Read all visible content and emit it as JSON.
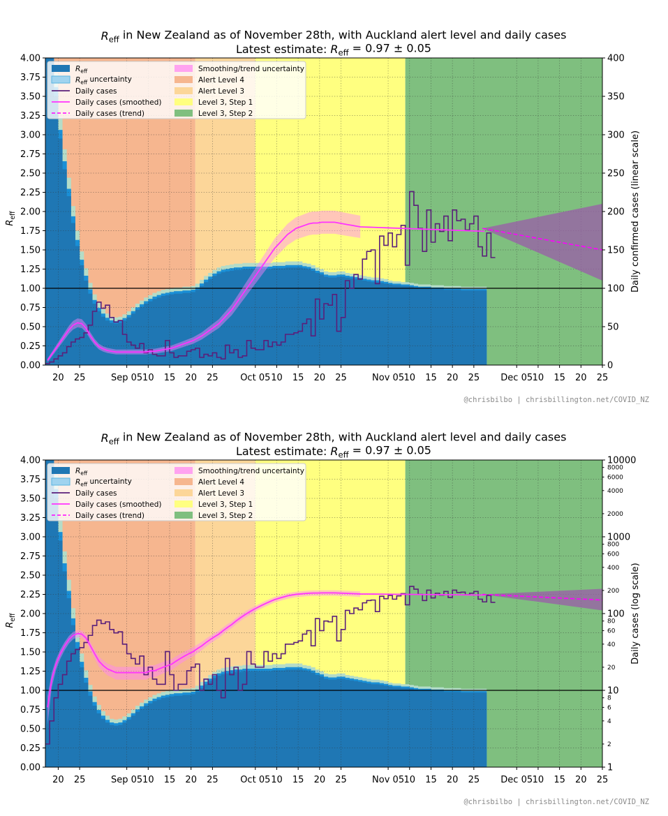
{
  "charts": [
    {
      "title_prefix": "R",
      "title_sub": "eff",
      "title_rest": " in New Zealand as of November 28th, with Auckland alert level and daily cases",
      "subtitle_prefix": "Latest estimate: ",
      "subtitle_formula": "R",
      "subtitle_sub": "eff",
      "subtitle_value": " = 0.97 ± 0.05",
      "ylabel_left": "R",
      "ylabel_left_sub": "eff",
      "ylabel_right": "Daily confirmed cases (linear scale)",
      "credit": "@chrisbilbo | chrisbillington.net/COVID_NZ"
    },
    {
      "title_prefix": "R",
      "title_sub": "eff",
      "title_rest": " in New Zealand as of November 28th, with Auckland alert level and daily cases",
      "subtitle_prefix": "Latest estimate: ",
      "subtitle_formula": "R",
      "subtitle_sub": "eff",
      "subtitle_value": " = 0.97 ± 0.05",
      "ylabel_left": "R",
      "ylabel_left_sub": "eff",
      "ylabel_right": "Daily cases (log scale)",
      "credit": "@chrisbilbo | chrisbillington.net/COVID_NZ"
    }
  ],
  "legend": [
    {
      "label": "R",
      "sub": "eff",
      "kind": "patch",
      "color": "#1f77b4"
    },
    {
      "label": "R",
      "sub": "eff",
      "suffix": " uncertainty",
      "kind": "patch-light",
      "color": "#9fd3ef"
    },
    {
      "label": "Daily cases",
      "kind": "line",
      "color": "#5a1f7a"
    },
    {
      "label": "Daily cases (smoothed)",
      "kind": "line",
      "color": "#ff33ff"
    },
    {
      "label": "Daily cases (trend)",
      "kind": "dash",
      "color": "#ff00ff"
    },
    {
      "label": "Smoothing/trend uncertainty",
      "kind": "patch",
      "color": "#ffa3f0"
    },
    {
      "label": "Alert Level 4",
      "kind": "patch",
      "color": "#f6b68f"
    },
    {
      "label": "Alert Level 3",
      "kind": "patch",
      "color": "#fcd699"
    },
    {
      "label": "Level 3, Step 1",
      "kind": "patch",
      "color": "#ffff80"
    },
    {
      "label": "Level 3, Step 2",
      "kind": "patch",
      "color": "#7fbf7f"
    }
  ],
  "chart_data": [
    {
      "type": "line",
      "title": "Reff in New Zealand as of November 28th, with Auckland alert level and daily cases",
      "subtitle": "Latest estimate: Reff = 0.97 ± 0.05",
      "x_tick_labels": [
        "20",
        "25",
        "Sep 05",
        "10",
        "15",
        "20",
        "25",
        "Oct 05",
        "10",
        "15",
        "20",
        "25",
        "Nov 05",
        "10",
        "15",
        "20",
        "25",
        "Dec 05",
        "10",
        "15",
        "20",
        "25"
      ],
      "ylim_left": [
        0,
        4
      ],
      "y_ticks_left": [
        "0.00",
        "0.25",
        "0.50",
        "0.75",
        "1.00",
        "1.25",
        "1.50",
        "1.75",
        "2.00",
        "2.25",
        "2.50",
        "2.75",
        "3.00",
        "3.25",
        "3.50",
        "3.75",
        "4.00"
      ],
      "ylim_right": [
        0,
        400
      ],
      "y_ticks_right": [
        "0",
        "50",
        "100",
        "150",
        "200",
        "250",
        "300",
        "350",
        "400"
      ],
      "right_scale": "linear",
      "grid": true,
      "legend_position": "top-left",
      "alert_levels": [
        {
          "name": "Alert Level 4",
          "start": "Aug 17",
          "end": "Sep 21"
        },
        {
          "name": "Alert Level 3",
          "start": "Sep 21",
          "end": "Oct 05"
        },
        {
          "name": "Level 3, Step 1",
          "start": "Oct 05",
          "end": "Nov 09"
        },
        {
          "name": "Level 3, Step 2",
          "start": "Nov 09",
          "end": "Dec 25"
        }
      ],
      "reff_days": [
        "Aug 17",
        "Aug 18",
        "Aug 19",
        "Aug 20",
        "Aug 21",
        "Aug 22",
        "Aug 23",
        "Aug 24",
        "Aug 25",
        "Aug 26",
        "Aug 27",
        "Aug 28",
        "Aug 29",
        "Aug 30",
        "Aug 31",
        "Sep 01",
        "Sep 02",
        "Sep 03",
        "Sep 04",
        "Sep 05",
        "Sep 06",
        "Sep 07",
        "Sep 08",
        "Sep 09",
        "Sep 10",
        "Sep 11",
        "Sep 12",
        "Sep 13",
        "Sep 14",
        "Sep 15",
        "Sep 16",
        "Sep 17",
        "Sep 18",
        "Sep 19",
        "Sep 20",
        "Sep 21",
        "Sep 22",
        "Sep 23",
        "Sep 24",
        "Sep 25",
        "Sep 26",
        "Sep 27",
        "Sep 28",
        "Sep 29",
        "Sep 30",
        "Oct 01",
        "Oct 02",
        "Oct 03",
        "Oct 04",
        "Oct 05",
        "Oct 06",
        "Oct 07",
        "Oct 08",
        "Oct 09",
        "Oct 10",
        "Oct 11",
        "Oct 12",
        "Oct 13",
        "Oct 14",
        "Oct 15",
        "Oct 16",
        "Oct 17",
        "Oct 18",
        "Oct 19",
        "Oct 20",
        "Oct 21",
        "Oct 22",
        "Oct 23",
        "Oct 24",
        "Oct 25",
        "Oct 26",
        "Oct 27",
        "Oct 28",
        "Oct 29",
        "Oct 30",
        "Oct 31",
        "Nov 01",
        "Nov 02",
        "Nov 03",
        "Nov 04",
        "Nov 05",
        "Nov 06",
        "Nov 07",
        "Nov 08",
        "Nov 09",
        "Nov 10",
        "Nov 11",
        "Nov 12",
        "Nov 13",
        "Nov 14",
        "Nov 15",
        "Nov 16",
        "Nov 17",
        "Nov 18",
        "Nov 19",
        "Nov 20",
        "Nov 21",
        "Nov 22",
        "Nov 23",
        "Nov 24",
        "Nov 25",
        "Nov 26",
        "Nov 27"
      ],
      "reff": [
        4.0,
        4.0,
        3.5,
        2.95,
        2.55,
        2.2,
        1.85,
        1.55,
        1.3,
        1.1,
        0.93,
        0.8,
        0.7,
        0.63,
        0.58,
        0.55,
        0.54,
        0.55,
        0.58,
        0.62,
        0.67,
        0.72,
        0.76,
        0.8,
        0.83,
        0.86,
        0.88,
        0.9,
        0.91,
        0.92,
        0.93,
        0.93,
        0.94,
        0.94,
        0.95,
        0.98,
        1.03,
        1.08,
        1.12,
        1.16,
        1.19,
        1.21,
        1.22,
        1.23,
        1.24,
        1.24,
        1.25,
        1.25,
        1.25,
        1.25,
        1.25,
        1.25,
        1.25,
        1.26,
        1.26,
        1.26,
        1.27,
        1.27,
        1.27,
        1.27,
        1.26,
        1.25,
        1.23,
        1.2,
        1.18,
        1.15,
        1.14,
        1.14,
        1.15,
        1.15,
        1.14,
        1.13,
        1.12,
        1.11,
        1.1,
        1.09,
        1.08,
        1.08,
        1.07,
        1.06,
        1.05,
        1.04,
        1.04,
        1.03,
        1.03,
        1.02,
        1.01,
        1.0,
        1.0,
        1.0,
        0.99,
        0.99,
        0.99,
        0.98,
        0.98,
        0.98,
        0.98,
        0.97,
        0.97,
        0.97,
        0.97,
        0.97,
        0.97
      ],
      "reff_uncertainty": [
        0.3,
        0.3,
        0.3,
        0.28,
        0.26,
        0.24,
        0.22,
        0.2,
        0.18,
        0.16,
        0.14,
        0.12,
        0.11,
        0.1,
        0.09,
        0.08,
        0.08,
        0.08,
        0.08,
        0.08,
        0.08,
        0.08,
        0.08,
        0.08,
        0.08,
        0.08,
        0.08,
        0.08,
        0.08,
        0.08,
        0.08,
        0.08,
        0.08,
        0.08,
        0.08,
        0.08,
        0.08,
        0.08,
        0.08,
        0.08,
        0.08,
        0.08,
        0.08,
        0.08,
        0.08,
        0.08,
        0.08,
        0.08,
        0.08,
        0.08,
        0.08,
        0.08,
        0.08,
        0.08,
        0.08,
        0.08,
        0.08,
        0.08,
        0.08,
        0.08,
        0.07,
        0.07,
        0.07,
        0.07,
        0.07,
        0.07,
        0.07,
        0.07,
        0.07,
        0.07,
        0.06,
        0.06,
        0.06,
        0.06,
        0.06,
        0.06,
        0.06,
        0.06,
        0.06,
        0.06,
        0.05,
        0.05,
        0.05,
        0.05,
        0.05,
        0.05,
        0.05,
        0.05,
        0.05,
        0.05,
        0.05,
        0.05,
        0.05,
        0.05,
        0.05,
        0.05,
        0.05,
        0.05,
        0.05,
        0.05,
        0.05,
        0.05,
        0.05
      ],
      "daily_cases": [
        2,
        4,
        8,
        12,
        16,
        24,
        30,
        34,
        36,
        42,
        52,
        70,
        82,
        74,
        78,
        62,
        56,
        58,
        40,
        30,
        26,
        22,
        28,
        16,
        20,
        14,
        12,
        12,
        32,
        16,
        10,
        12,
        12,
        18,
        20,
        22,
        10,
        14,
        12,
        16,
        10,
        8,
        26,
        16,
        20,
        10,
        12,
        32,
        22,
        20,
        20,
        32,
        24,
        30,
        26,
        30,
        40,
        40,
        42,
        44,
        54,
        60,
        38,
        86,
        60,
        80,
        78,
        92,
        44,
        62,
        110,
        100,
        118,
        112,
        138,
        148,
        150,
        106,
        168,
        156,
        172,
        154,
        170,
        182,
        130,
        226,
        208,
        178,
        148,
        202,
        160,
        184,
        174,
        194,
        162,
        202,
        188,
        190,
        176,
        184,
        194,
        154,
        142,
        172,
        140
      ],
      "smoothed": [
        6,
        14,
        22,
        30,
        38,
        46,
        52,
        55,
        54,
        48,
        38,
        30,
        24,
        21,
        19,
        18,
        17,
        17,
        17,
        17,
        17,
        17,
        17,
        17,
        18,
        18,
        19,
        20,
        21,
        22,
        24,
        26,
        28,
        30,
        32,
        35,
        38,
        42,
        46,
        50,
        54,
        60,
        66,
        72,
        80,
        88,
        96,
        104,
        112,
        120,
        128,
        136,
        144,
        152,
        158,
        164,
        170,
        174,
        178,
        180,
        182,
        184,
        185,
        185,
        186,
        186,
        186,
        186,
        185,
        184,
        183,
        182,
        181,
        180
      ],
      "smoothed_days_start": "Aug 17",
      "trend": {
        "start": "Nov 27",
        "end": "Dec 25",
        "start_value": 178,
        "end_value": 150,
        "uncertainty_at_end": [
          110,
          210
        ]
      }
    },
    {
      "type": "line",
      "title": "Reff in New Zealand as of November 28th, with Auckland alert level and daily cases",
      "subtitle": "Latest estimate: Reff = 0.97 ± 0.05",
      "x_tick_labels": [
        "20",
        "25",
        "Sep 05",
        "10",
        "15",
        "20",
        "25",
        "Oct 05",
        "10",
        "15",
        "20",
        "25",
        "Nov 05",
        "10",
        "15",
        "20",
        "25",
        "Dec 05",
        "10",
        "15",
        "20",
        "25"
      ],
      "ylim_left": [
        0,
        4
      ],
      "y_ticks_left": [
        "0.00",
        "0.25",
        "0.50",
        "0.75",
        "1.00",
        "1.25",
        "1.50",
        "1.75",
        "2.00",
        "2.25",
        "2.50",
        "2.75",
        "3.00",
        "3.25",
        "3.50",
        "3.75",
        "4.00"
      ],
      "ylim_right": [
        1,
        10000
      ],
      "y_ticks_right_major": [
        "1",
        "10",
        "100",
        "1000",
        "10000"
      ],
      "y_ticks_right_minor": [
        "2",
        "4",
        "6",
        "8",
        "20",
        "40",
        "60",
        "80",
        "200",
        "400",
        "600",
        "800",
        "2000",
        "4000",
        "6000",
        "8000"
      ],
      "right_scale": "log",
      "grid": true,
      "legend_position": "top-left"
    }
  ]
}
